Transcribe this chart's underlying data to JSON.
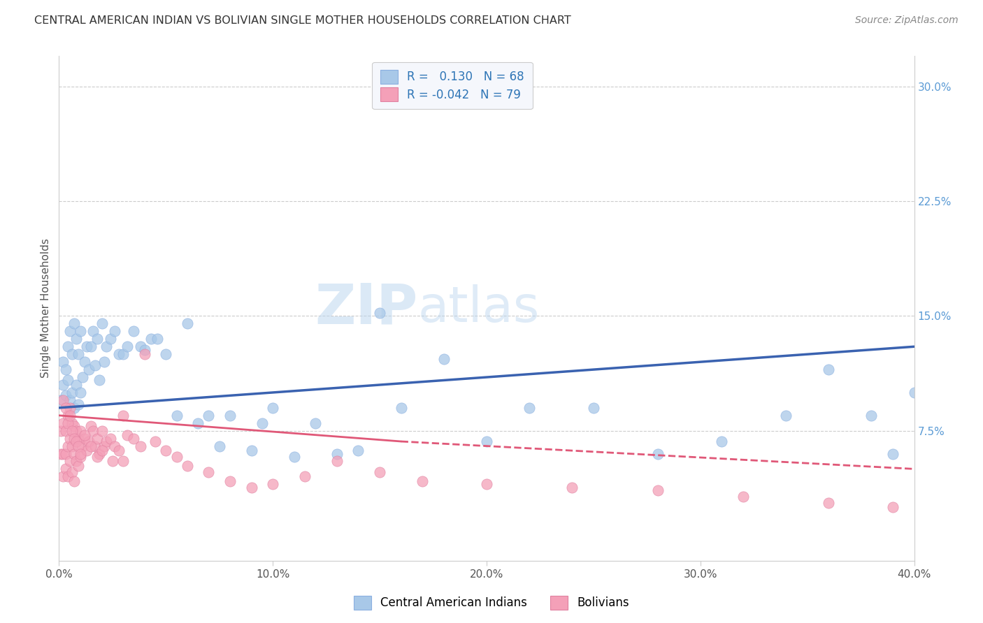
{
  "title": "CENTRAL AMERICAN INDIAN VS BOLIVIAN SINGLE MOTHER HOUSEHOLDS CORRELATION CHART",
  "source": "Source: ZipAtlas.com",
  "ylabel": "Single Mother Households",
  "legend_label1": "Central American Indians",
  "legend_label2": "Bolivians",
  "R1": 0.13,
  "N1": 68,
  "R2": -0.042,
  "N2": 79,
  "xlim": [
    0.0,
    0.4
  ],
  "ylim": [
    -0.01,
    0.32
  ],
  "xticklabels": [
    "0.0%",
    "",
    "10.0%",
    "",
    "20.0%",
    "",
    "30.0%",
    "",
    "40.0%"
  ],
  "ytick_labels_right": [
    "7.5%",
    "15.0%",
    "22.5%",
    "30.0%"
  ],
  "color_blue": "#A8C8E8",
  "color_pink": "#F4A0B8",
  "line_blue": "#3A62B0",
  "line_pink": "#E05878",
  "background_color": "#FFFFFF",
  "watermark": "ZIPatlas",
  "blue_x": [
    0.001,
    0.002,
    0.002,
    0.003,
    0.003,
    0.004,
    0.004,
    0.005,
    0.005,
    0.006,
    0.006,
    0.007,
    0.007,
    0.008,
    0.008,
    0.009,
    0.009,
    0.01,
    0.01,
    0.011,
    0.012,
    0.013,
    0.014,
    0.015,
    0.016,
    0.017,
    0.018,
    0.019,
    0.02,
    0.021,
    0.022,
    0.024,
    0.026,
    0.028,
    0.03,
    0.032,
    0.035,
    0.038,
    0.04,
    0.043,
    0.046,
    0.05,
    0.055,
    0.06,
    0.065,
    0.07,
    0.075,
    0.08,
    0.09,
    0.095,
    0.1,
    0.11,
    0.12,
    0.13,
    0.14,
    0.15,
    0.16,
    0.18,
    0.2,
    0.22,
    0.25,
    0.28,
    0.31,
    0.34,
    0.36,
    0.38,
    0.39,
    0.4
  ],
  "blue_y": [
    0.095,
    0.12,
    0.105,
    0.115,
    0.098,
    0.13,
    0.108,
    0.14,
    0.095,
    0.125,
    0.1,
    0.145,
    0.09,
    0.135,
    0.105,
    0.125,
    0.092,
    0.14,
    0.1,
    0.11,
    0.12,
    0.13,
    0.115,
    0.13,
    0.14,
    0.118,
    0.135,
    0.108,
    0.145,
    0.12,
    0.13,
    0.135,
    0.14,
    0.125,
    0.125,
    0.13,
    0.14,
    0.13,
    0.128,
    0.135,
    0.135,
    0.125,
    0.085,
    0.145,
    0.08,
    0.085,
    0.065,
    0.085,
    0.062,
    0.08,
    0.09,
    0.058,
    0.08,
    0.06,
    0.062,
    0.152,
    0.09,
    0.122,
    0.068,
    0.09,
    0.09,
    0.06,
    0.068,
    0.085,
    0.115,
    0.085,
    0.06,
    0.1
  ],
  "pink_x": [
    0.001,
    0.001,
    0.002,
    0.002,
    0.002,
    0.003,
    0.003,
    0.003,
    0.004,
    0.004,
    0.004,
    0.005,
    0.005,
    0.005,
    0.006,
    0.006,
    0.006,
    0.007,
    0.007,
    0.007,
    0.008,
    0.008,
    0.009,
    0.009,
    0.01,
    0.01,
    0.011,
    0.012,
    0.013,
    0.014,
    0.015,
    0.016,
    0.017,
    0.018,
    0.019,
    0.02,
    0.021,
    0.022,
    0.024,
    0.026,
    0.028,
    0.03,
    0.032,
    0.035,
    0.038,
    0.04,
    0.045,
    0.05,
    0.055,
    0.06,
    0.07,
    0.08,
    0.09,
    0.1,
    0.115,
    0.13,
    0.15,
    0.17,
    0.2,
    0.24,
    0.28,
    0.32,
    0.36,
    0.39,
    0.002,
    0.003,
    0.004,
    0.005,
    0.006,
    0.007,
    0.008,
    0.009,
    0.01,
    0.012,
    0.015,
    0.018,
    0.02,
    0.025,
    0.03
  ],
  "pink_y": [
    0.06,
    0.075,
    0.08,
    0.06,
    0.045,
    0.075,
    0.06,
    0.05,
    0.085,
    0.065,
    0.045,
    0.09,
    0.07,
    0.055,
    0.08,
    0.065,
    0.048,
    0.078,
    0.06,
    0.042,
    0.075,
    0.055,
    0.07,
    0.052,
    0.075,
    0.058,
    0.065,
    0.07,
    0.062,
    0.068,
    0.078,
    0.075,
    0.065,
    0.07,
    0.06,
    0.075,
    0.065,
    0.068,
    0.07,
    0.065,
    0.062,
    0.085,
    0.072,
    0.07,
    0.065,
    0.125,
    0.068,
    0.062,
    0.058,
    0.052,
    0.048,
    0.042,
    0.038,
    0.04,
    0.045,
    0.055,
    0.048,
    0.042,
    0.04,
    0.038,
    0.036,
    0.032,
    0.028,
    0.025,
    0.095,
    0.09,
    0.08,
    0.085,
    0.075,
    0.07,
    0.068,
    0.065,
    0.06,
    0.072,
    0.065,
    0.058,
    0.062,
    0.055,
    0.055
  ]
}
